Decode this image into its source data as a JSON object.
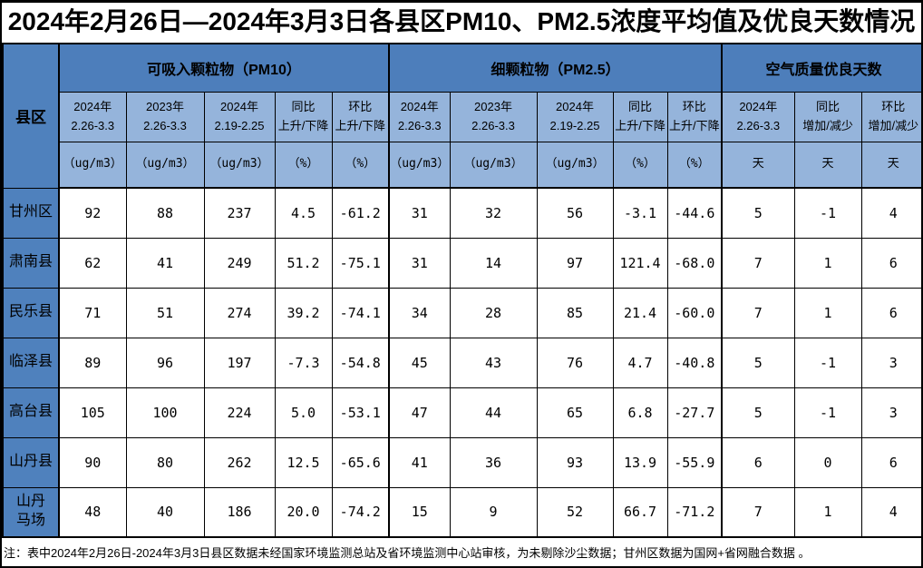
{
  "title": "2024年2月26日—2024年3月3日各县区PM10、PM2.5浓度平均值及优良天数情况",
  "table": {
    "county_header": "县区",
    "sections": [
      {
        "label": "可吸入颗粒物（PM10）",
        "columns": [
          {
            "line1": "2024年",
            "line2": "2.26-3.3",
            "unit": "（ug/m3）"
          },
          {
            "line1": "2023年",
            "line2": "2.26-3.3",
            "unit": "（ug/m3）"
          },
          {
            "line1": "2024年",
            "line2": "2.19-2.25",
            "unit": "（ug/m3）"
          },
          {
            "line1": "同比",
            "line2": "上升/下降",
            "unit": "（%）"
          },
          {
            "line1": "环比",
            "line2": "上升/下降",
            "unit": "（%）"
          }
        ]
      },
      {
        "label": "细颗粒物（PM2.5）",
        "columns": [
          {
            "line1": "2024年",
            "line2": "2.26-3.3",
            "unit": "（ug/m3）"
          },
          {
            "line1": "2023年",
            "line2": "2.26-3.3",
            "unit": "（ug/m3）"
          },
          {
            "line1": "2024年",
            "line2": "2.19-2.25",
            "unit": "（ug/m3）"
          },
          {
            "line1": "同比",
            "line2": "上升/下降",
            "unit": "（%）"
          },
          {
            "line1": "环比",
            "line2": "上升/下降",
            "unit": "（%）"
          }
        ]
      },
      {
        "label": "空气质量优良天数",
        "columns": [
          {
            "line1": "2024年",
            "line2": "2.26-3.3",
            "unit": "天"
          },
          {
            "line1": "同比",
            "line2": "增加/减少",
            "unit": "天"
          },
          {
            "line1": "环比",
            "line2": "增加/减少",
            "unit": "天"
          }
        ]
      }
    ],
    "rows": [
      {
        "county": "甘州区",
        "values": [
          "92",
          "88",
          "237",
          "4.5",
          "-61.2",
          "31",
          "32",
          "56",
          "-3.1",
          "-44.6",
          "5",
          "-1",
          "4"
        ]
      },
      {
        "county": "肃南县",
        "values": [
          "62",
          "41",
          "249",
          "51.2",
          "-75.1",
          "31",
          "14",
          "97",
          "121.4",
          "-68.0",
          "7",
          "1",
          "6"
        ]
      },
      {
        "county": "民乐县",
        "values": [
          "71",
          "51",
          "274",
          "39.2",
          "-74.1",
          "34",
          "28",
          "85",
          "21.4",
          "-60.0",
          "7",
          "1",
          "6"
        ]
      },
      {
        "county": "临泽县",
        "values": [
          "89",
          "96",
          "197",
          "-7.3",
          "-54.8",
          "45",
          "43",
          "76",
          "4.7",
          "-40.8",
          "5",
          "-1",
          "3"
        ]
      },
      {
        "county": "高台县",
        "values": [
          "105",
          "100",
          "224",
          "5.0",
          "-53.1",
          "47",
          "44",
          "65",
          "6.8",
          "-27.7",
          "5",
          "-1",
          "3"
        ]
      },
      {
        "county": "山丹县",
        "values": [
          "90",
          "80",
          "262",
          "12.5",
          "-65.6",
          "41",
          "36",
          "93",
          "13.9",
          "-55.9",
          "6",
          "0",
          "6"
        ]
      },
      {
        "county": "山丹\n马场",
        "values": [
          "48",
          "40",
          "186",
          "20.0",
          "-74.2",
          "15",
          "9",
          "52",
          "66.7",
          "-71.2",
          "7",
          "1",
          "4"
        ]
      }
    ]
  },
  "note": "注：表中2024年2月26日-2024年3月3日县区数据未经国家环境监测总站及省环境监测中心站审核，为未剔除沙尘数据；甘州区数据为国网+省网融合数据 。",
  "colors": {
    "section_header_bg": "#4d7ebb",
    "subheader_bg": "#95b4db",
    "county_bg": "#4f81bd",
    "border": "#000000",
    "text": "#000000",
    "background": "#ffffff"
  }
}
